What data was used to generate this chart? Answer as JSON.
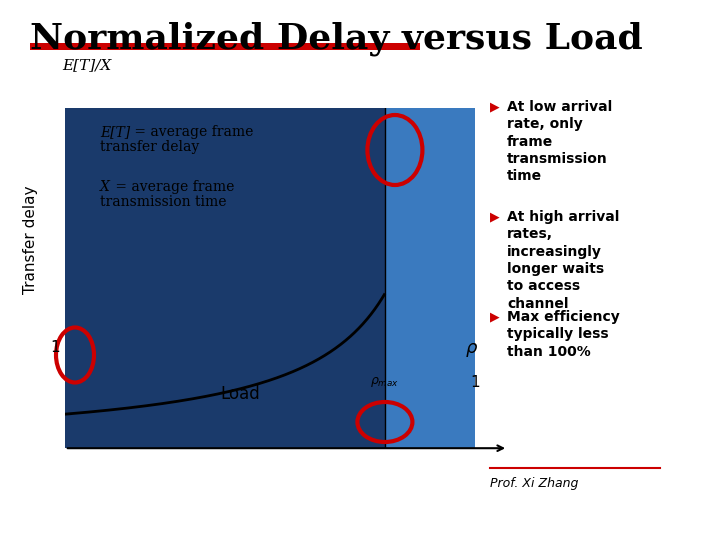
{
  "title": "Normalized Delay versus Load",
  "title_fontsize": 26,
  "title_fontweight": "bold",
  "title_color": "#000000",
  "red_bar_color": "#cc0000",
  "ylabel_axis": "E[T]/X",
  "xlabel_axis": "Load",
  "ylabel_rotate": "Transfer delay",
  "curve_color": "#000000",
  "bg_dark_blue": "#1a3a6b",
  "bg_light_blue": "#3a7abf",
  "bullet_color": "#cc0000",
  "bullets": [
    "At low arrival\nrate, only\nframe\ntransmission\ntime",
    "At high arrival\nrates,\nincreasingly\nlonger waits\nto access\nchannel",
    "Max efficiency\ntypically less\nthan 100%"
  ],
  "prof_text": "Prof. Xi Zhang",
  "rho_max": 0.78,
  "circle_color": "#cc0000",
  "background_color": "#ffffff",
  "annotation1_line1": "E[T] = average frame",
  "annotation1_line2": "transfer delay",
  "annotation2_line1": "X = average frame",
  "annotation2_line2": "transmission time"
}
